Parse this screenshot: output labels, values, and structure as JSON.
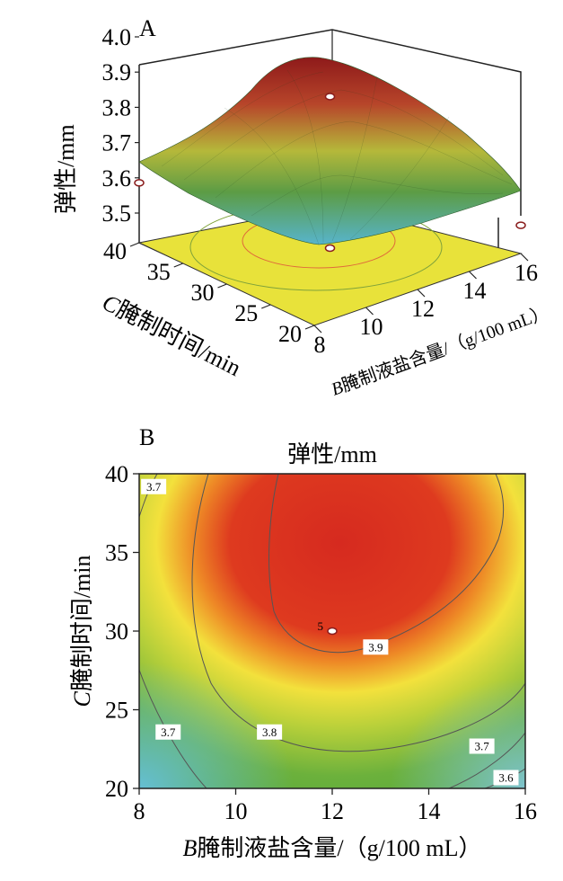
{
  "chart_data": [
    {
      "panel": "A",
      "type": "surface3d",
      "zlabel": "弹性/mm",
      "ztick_labels": [
        "3.5",
        "3.6",
        "3.7",
        "3.8",
        "3.9",
        "4.0"
      ],
      "zlim": [
        3.5,
        4.0
      ],
      "xlabel_var": "B",
      "xlabel_text": "腌制液盐含量/（g/100 mL）",
      "x_tick_labels": [
        "8",
        "10",
        "12",
        "14",
        "16"
      ],
      "ylabel_var": "C",
      "ylabel_text": "腌制时间/min",
      "y_tick_labels": [
        "20",
        "25",
        "30",
        "35",
        "40"
      ],
      "colors": {
        "high": "#9e1f1f",
        "mid": "#b9c53a",
        "low": "#4fb0c8",
        "floor": "#e8e23a"
      },
      "points": [
        {
          "x": 12,
          "y": 30,
          "z": 3.93
        },
        {
          "x": 12,
          "y": 30,
          "z": 3.5
        },
        {
          "x": 8,
          "y": 40,
          "z": 3.67
        },
        {
          "x": 16,
          "y": 20,
          "z": 3.58
        }
      ]
    },
    {
      "panel": "B",
      "type": "contour",
      "title": "弹性/mm",
      "xlabel_var": "B",
      "xlabel_text": "腌制液盐含量/（g/100 mL）",
      "x_tick_labels": [
        "8",
        "10",
        "12",
        "14",
        "16"
      ],
      "xlim": [
        8,
        16
      ],
      "ylabel_var": "C",
      "ylabel_text": "腌制时间/min",
      "y_tick_labels": [
        "20",
        "25",
        "30",
        "35",
        "40"
      ],
      "ylim": [
        20,
        40
      ],
      "contour_labels": [
        {
          "text": "3.7",
          "x": 8.3,
          "y": 39.1
        },
        {
          "text": "3.7",
          "x": 8.6,
          "y": 23.5
        },
        {
          "text": "3.8",
          "x": 10.7,
          "y": 23.5
        },
        {
          "text": "3.9",
          "x": 12.9,
          "y": 28.9
        },
        {
          "text": "3.7",
          "x": 15.1,
          "y": 22.6
        },
        {
          "text": "3.6",
          "x": 15.6,
          "y": 20.6
        }
      ],
      "center_point": {
        "label": "5",
        "x": 12,
        "y": 30
      },
      "colors": {
        "high": "#d8281e",
        "mid": "#f0e43a",
        "low": "#5cb4c6",
        "green": "#5aa83c"
      }
    }
  ]
}
